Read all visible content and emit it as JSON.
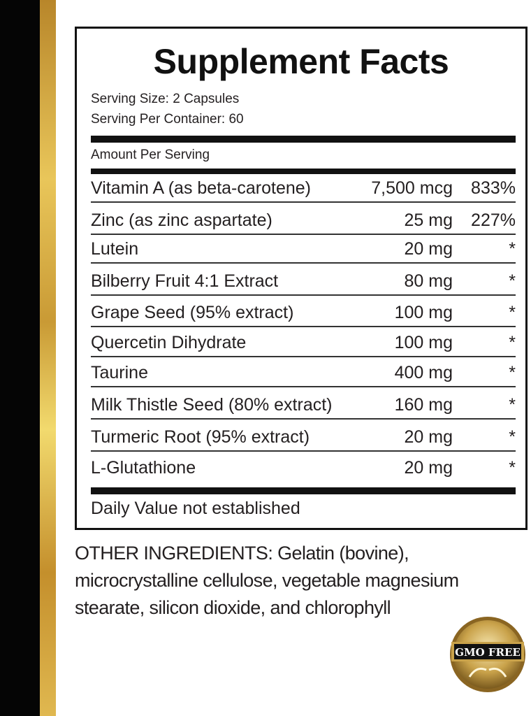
{
  "title": "Supplement Facts",
  "serving_size": "Serving Size: 2 Capsules",
  "servings_per_container": "Serving Per Container: 60",
  "amount_per_serving": "Amount Per Serving",
  "ingredients": [
    {
      "name": "Vitamin A (as beta-carotene)",
      "amount": "7,500 mcg",
      "dv": "833%"
    },
    {
      "name": "Zinc (as zinc aspartate)",
      "amount": "25 mg",
      "dv": "227%"
    },
    {
      "name": "Lutein",
      "amount": "20 mg",
      "dv": "*"
    },
    {
      "name": "Bilberry Fruit 4:1 Extract",
      "amount": "80 mg",
      "dv": "*"
    },
    {
      "name": "Grape Seed (95% extract)",
      "amount": "100 mg",
      "dv": "*"
    },
    {
      "name": "Quercetin Dihydrate",
      "amount": "100 mg",
      "dv": "*"
    },
    {
      "name": "Taurine",
      "amount": "400 mg",
      "dv": "*"
    },
    {
      "name": "Milk Thistle Seed (80% extract)",
      "amount": "160 mg",
      "dv": "*"
    },
    {
      "name": "Turmeric Root (95% extract)",
      "amount": "20 mg",
      "dv": "*"
    },
    {
      "name": "L-Glutathione",
      "amount": "20 mg",
      "dv": "*"
    }
  ],
  "footnote": "Daily Value not established",
  "other_ingredients": "OTHER INGREDIENTS: Gelatin (bovine), microcrystalline cellulose, vegetable magnesium stearate, silicon dioxide, and chlorophyll",
  "badge": {
    "text": "GMO FREE",
    "color": "#c9a24a"
  },
  "colors": {
    "stripe_black": "#050505",
    "stripe_gold": "#e0b850"
  }
}
